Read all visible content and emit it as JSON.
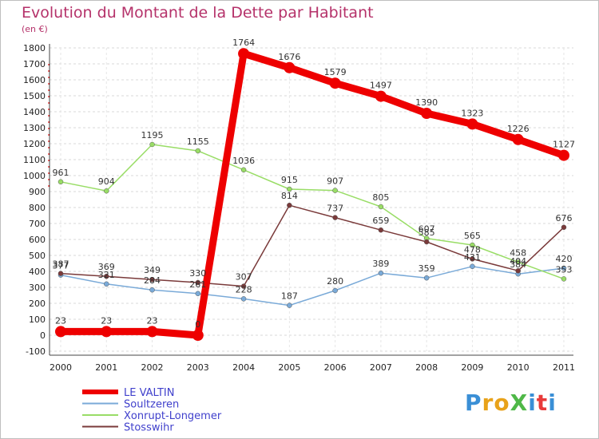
{
  "title": "Evolution du Montant de la Dette par Habitant",
  "subtitle": "(en €)",
  "logo": {
    "text": "ProXiti",
    "colors": [
      "#3a8fd6",
      "#e8a21a",
      "#e8a21a",
      "#4fb848",
      "#3a8fd6",
      "#e83a3a",
      "#3a8fd6"
    ]
  },
  "chart_data": {
    "type": "line",
    "x": [
      "2000",
      "2001",
      "2002",
      "2003",
      "2004",
      "2005",
      "2006",
      "2007",
      "2008",
      "2009",
      "2010",
      "2011"
    ],
    "ylim": [
      -100,
      1800
    ],
    "yticks": [
      -100,
      0,
      100,
      200,
      300,
      400,
      500,
      600,
      700,
      800,
      900,
      1000,
      1100,
      1200,
      1300,
      1400,
      1500,
      1600,
      1700,
      1800
    ],
    "grid": true,
    "legend_position": "bottom-left",
    "series": [
      {
        "name": "LE VALTIN",
        "color": "#ee0000",
        "width": 9,
        "marker": 7,
        "values": [
          23,
          23,
          23,
          0,
          1764,
          1676,
          1579,
          1497,
          1390,
          1323,
          1226,
          1127
        ]
      },
      {
        "name": "Soultzeren",
        "color": "#7aaad8",
        "width": 1.5,
        "marker": 3,
        "values": [
          377,
          321,
          284,
          261,
          228,
          187,
          280,
          389,
          359,
          431,
          384,
          420
        ]
      },
      {
        "name": "Xonrupt-Longemer",
        "color": "#99dd66",
        "width": 1.5,
        "marker": 3,
        "values": [
          961,
          904,
          1195,
          1155,
          1036,
          915,
          907,
          805,
          607,
          565,
          458,
          353
        ]
      },
      {
        "name": "Stosswihr",
        "color": "#7a3a3a",
        "width": 1.5,
        "marker": 3,
        "values": [
          387,
          369,
          349,
          330,
          307,
          814,
          737,
          659,
          585,
          478,
          404,
          676
        ]
      }
    ]
  }
}
